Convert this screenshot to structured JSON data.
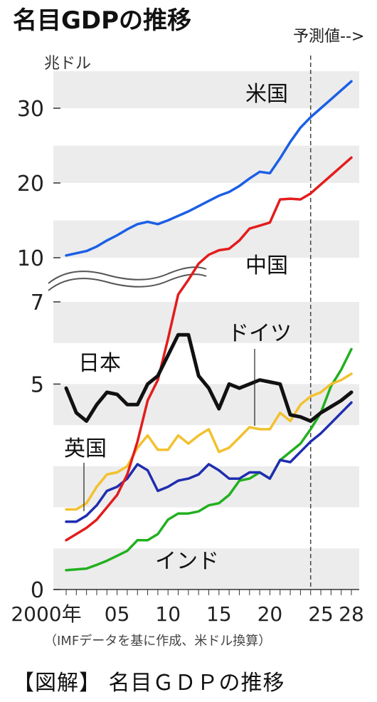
{
  "chart_data": {
    "type": "line",
    "title": "名目GDPの推移",
    "unit_label": "兆ドル",
    "forecast_label": "予測値-->",
    "source_note": "（IMFデータを基に作成、米ドル換算）",
    "x_tick_labels": [
      {
        "x": 2000,
        "label": "2000年"
      },
      {
        "x": 2005,
        "label": "05"
      },
      {
        "x": 2010,
        "label": "10"
      },
      {
        "x": 2015,
        "label": "15"
      },
      {
        "x": 2020,
        "label": "20"
      },
      {
        "x": 2025,
        "label": "25"
      },
      {
        "x": 2028,
        "label": "28"
      }
    ],
    "y_tick_labels": [
      {
        "value": 0,
        "label": "0"
      },
      {
        "value": 5,
        "label": "5"
      },
      {
        "value": 7,
        "label": "7"
      },
      {
        "value": 10,
        "label": "10"
      },
      {
        "value": 20,
        "label": "20"
      },
      {
        "value": 30,
        "label": "30"
      }
    ],
    "axis_break": "between 7 and 10",
    "forecast_start": 2024,
    "grid": "alternating gray bands",
    "series": [
      {
        "name": "米国",
        "color": "#1a5fe6",
        "x": [
          2000,
          2001,
          2002,
          2003,
          2004,
          2005,
          2006,
          2007,
          2008,
          2009,
          2010,
          2011,
          2012,
          2013,
          2014,
          2015,
          2016,
          2017,
          2018,
          2019,
          2020,
          2021,
          2022,
          2023,
          2024,
          2025,
          2026,
          2027,
          2028
        ],
        "y": [
          10.3,
          10.6,
          10.9,
          11.5,
          12.3,
          13.0,
          13.8,
          14.5,
          14.8,
          14.5,
          15.0,
          15.6,
          16.2,
          16.9,
          17.6,
          18.3,
          18.8,
          19.6,
          20.6,
          21.5,
          21.3,
          23.3,
          25.5,
          27.4,
          28.8,
          30.0,
          31.2,
          32.4,
          33.6
        ]
      },
      {
        "name": "中国",
        "color": "#e31c1c",
        "x": [
          2000,
          2001,
          2002,
          2003,
          2004,
          2005,
          2006,
          2007,
          2008,
          2009,
          2010,
          2011,
          2012,
          2013,
          2014,
          2015,
          2016,
          2017,
          2018,
          2019,
          2020,
          2021,
          2022,
          2023,
          2024,
          2025,
          2026,
          2027,
          2028
        ],
        "y": [
          1.2,
          1.35,
          1.5,
          1.7,
          2.0,
          2.3,
          2.8,
          3.6,
          4.6,
          5.1,
          6.1,
          7.5,
          8.5,
          9.6,
          10.4,
          11.0,
          11.2,
          12.3,
          13.9,
          14.3,
          14.7,
          17.8,
          17.9,
          17.8,
          18.6,
          19.8,
          21.0,
          22.2,
          23.4
        ]
      },
      {
        "name": "日本",
        "color": "#111111",
        "x": [
          2000,
          2001,
          2002,
          2003,
          2004,
          2005,
          2006,
          2007,
          2008,
          2009,
          2010,
          2011,
          2012,
          2013,
          2014,
          2015,
          2016,
          2017,
          2018,
          2019,
          2020,
          2021,
          2022,
          2023,
          2024,
          2025,
          2026,
          2027,
          2028
        ],
        "y": [
          4.9,
          4.3,
          4.1,
          4.5,
          4.8,
          4.75,
          4.5,
          4.5,
          5.0,
          5.2,
          5.7,
          6.2,
          6.2,
          5.2,
          4.9,
          4.4,
          5.0,
          4.9,
          5.0,
          5.1,
          5.05,
          5.0,
          4.25,
          4.2,
          4.1,
          4.3,
          4.45,
          4.6,
          4.8
        ]
      },
      {
        "name": "ドイツ",
        "color": "#f2c12e",
        "x": [
          2000,
          2001,
          2002,
          2003,
          2004,
          2005,
          2006,
          2007,
          2008,
          2009,
          2010,
          2011,
          2012,
          2013,
          2014,
          2015,
          2016,
          2017,
          2018,
          2019,
          2020,
          2021,
          2022,
          2023,
          2024,
          2025,
          2026,
          2027,
          2028
        ],
        "y": [
          1.95,
          1.95,
          2.1,
          2.5,
          2.8,
          2.85,
          3.0,
          3.45,
          3.75,
          3.4,
          3.4,
          3.75,
          3.55,
          3.75,
          3.9,
          3.35,
          3.45,
          3.7,
          3.95,
          3.9,
          3.9,
          4.3,
          4.1,
          4.5,
          4.7,
          4.8,
          5.0,
          5.1,
          5.25
        ]
      },
      {
        "name": "英国",
        "color": "#1f2db0",
        "x": [
          2000,
          2001,
          2002,
          2003,
          2004,
          2005,
          2006,
          2007,
          2008,
          2009,
          2010,
          2011,
          2012,
          2013,
          2014,
          2015,
          2016,
          2017,
          2018,
          2019,
          2020,
          2021,
          2022,
          2023,
          2024,
          2025,
          2026,
          2027,
          2028
        ],
        "y": [
          1.65,
          1.65,
          1.8,
          2.05,
          2.4,
          2.5,
          2.7,
          3.05,
          2.9,
          2.4,
          2.5,
          2.65,
          2.7,
          2.8,
          3.05,
          2.9,
          2.7,
          2.7,
          2.85,
          2.85,
          2.7,
          3.15,
          3.1,
          3.35,
          3.6,
          3.8,
          4.05,
          4.3,
          4.55
        ]
      },
      {
        "name": "インド",
        "color": "#22b01f",
        "x": [
          2000,
          2001,
          2002,
          2003,
          2004,
          2005,
          2006,
          2007,
          2008,
          2009,
          2010,
          2011,
          2012,
          2013,
          2014,
          2015,
          2016,
          2017,
          2018,
          2019,
          2020,
          2021,
          2022,
          2023,
          2024,
          2025,
          2026,
          2027,
          2028
        ],
        "y": [
          0.47,
          0.49,
          0.51,
          0.6,
          0.7,
          0.82,
          0.94,
          1.2,
          1.2,
          1.35,
          1.7,
          1.85,
          1.85,
          1.9,
          2.05,
          2.1,
          2.3,
          2.65,
          2.7,
          2.85,
          2.7,
          3.15,
          3.35,
          3.55,
          3.9,
          4.3,
          4.95,
          5.35,
          5.85
        ]
      }
    ]
  },
  "footer": {
    "caption": "【図解】 名目ＧＤＰの推移"
  }
}
